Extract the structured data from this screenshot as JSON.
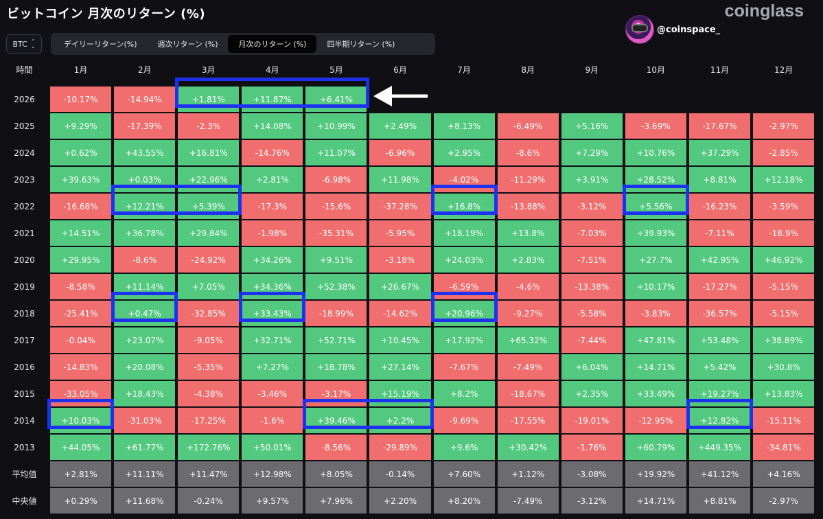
{
  "title": "ビットコイン 月次のリターン (%)",
  "brand": "coinglass",
  "user": {
    "handle": "@coinspace_"
  },
  "coin_select": {
    "value": "BTC"
  },
  "tabs": [
    {
      "label": "デイリーリターン(%)",
      "active": false
    },
    {
      "label": "週次リターン (%)",
      "active": false
    },
    {
      "label": "月次のリターン (%)",
      "active": true
    },
    {
      "label": "四半期リターン (%)",
      "active": false
    }
  ],
  "colors": {
    "positive": "#52c97f",
    "negative": "#f06e6e",
    "stat": "#6b6b70",
    "highlight": "#1f31f0",
    "background": "#101014"
  },
  "chart_data": {
    "type": "heatmap",
    "title": "ビットコイン 月次のリターン (%)",
    "row_header": "時間",
    "columns": [
      "1月",
      "2月",
      "3月",
      "4月",
      "5月",
      "6月",
      "7月",
      "8月",
      "9月",
      "10月",
      "11月",
      "12月"
    ],
    "rows": [
      {
        "label": "2026",
        "values": [
          "-10.17%",
          "-14.94%",
          "+1.81%",
          "+11.87%",
          "+6.41%",
          "",
          "",
          "",
          "",
          "",
          "",
          ""
        ]
      },
      {
        "label": "2025",
        "values": [
          "+9.29%",
          "-17.39%",
          "-2.3%",
          "+14.08%",
          "+10.99%",
          "+2.49%",
          "+8.13%",
          "-6.49%",
          "+5.16%",
          "-3.69%",
          "-17.67%",
          "-2.97%"
        ]
      },
      {
        "label": "2024",
        "values": [
          "+0.62%",
          "+43.55%",
          "+16.81%",
          "-14.76%",
          "+11.07%",
          "-6.96%",
          "+2.95%",
          "-8.6%",
          "+7.29%",
          "+10.76%",
          "+37.29%",
          "-2.85%"
        ]
      },
      {
        "label": "2023",
        "values": [
          "+39.63%",
          "+0.03%",
          "+22.96%",
          "+2.81%",
          "-6.98%",
          "+11.98%",
          "-4.02%",
          "-11.29%",
          "+3.91%",
          "+28.52%",
          "+8.81%",
          "+12.18%"
        ]
      },
      {
        "label": "2022",
        "values": [
          "-16.68%",
          "+12.21%",
          "+5.39%",
          "-17.3%",
          "-15.6%",
          "-37.28%",
          "+16.8%",
          "-13.88%",
          "-3.12%",
          "+5.56%",
          "-16.23%",
          "-3.59%"
        ]
      },
      {
        "label": "2021",
        "values": [
          "+14.51%",
          "+36.78%",
          "+29.84%",
          "-1.98%",
          "-35.31%",
          "-5.95%",
          "+18.19%",
          "+13.8%",
          "-7.03%",
          "+39.93%",
          "-7.11%",
          "-18.9%"
        ]
      },
      {
        "label": "2020",
        "values": [
          "+29.95%",
          "-8.6%",
          "-24.92%",
          "+34.26%",
          "+9.51%",
          "-3.18%",
          "+24.03%",
          "+2.83%",
          "-7.51%",
          "+27.7%",
          "+42.95%",
          "+46.92%"
        ]
      },
      {
        "label": "2019",
        "values": [
          "-8.58%",
          "+11.14%",
          "+7.05%",
          "+34.36%",
          "+52.38%",
          "+26.67%",
          "-6.59%",
          "-4.6%",
          "-13.38%",
          "+10.17%",
          "-17.27%",
          "-5.15%"
        ]
      },
      {
        "label": "2018",
        "values": [
          "-25.41%",
          "+0.47%",
          "-32.85%",
          "+33.43%",
          "-18.99%",
          "-14.62%",
          "+20.96%",
          "-9.27%",
          "-5.58%",
          "-3.83%",
          "-36.57%",
          "-5.15%"
        ]
      },
      {
        "label": "2017",
        "values": [
          "-0.04%",
          "+23.07%",
          "-9.05%",
          "+32.71%",
          "+52.71%",
          "+10.45%",
          "+17.92%",
          "+65.32%",
          "-7.44%",
          "+47.81%",
          "+53.48%",
          "+38.89%"
        ]
      },
      {
        "label": "2016",
        "values": [
          "-14.83%",
          "+20.08%",
          "-5.35%",
          "+7.27%",
          "+18.78%",
          "+27.14%",
          "-7.67%",
          "-7.49%",
          "+6.04%",
          "+14.71%",
          "+5.42%",
          "+30.8%"
        ]
      },
      {
        "label": "2015",
        "values": [
          "-33.05%",
          "+18.43%",
          "-4.38%",
          "-3.46%",
          "-3.17%",
          "+15.19%",
          "+8.2%",
          "-18.67%",
          "+2.35%",
          "+33.49%",
          "+19.27%",
          "+13.83%"
        ]
      },
      {
        "label": "2014",
        "values": [
          "+10.03%",
          "-31.03%",
          "-17.25%",
          "-1.6%",
          "+39.46%",
          "+2.2%",
          "-9.69%",
          "-17.55%",
          "-19.01%",
          "-12.95%",
          "+12.82%",
          "-15.11%"
        ]
      },
      {
        "label": "2013",
        "values": [
          "+44.05%",
          "+61.77%",
          "+172.76%",
          "+50.01%",
          "-8.56%",
          "-29.89%",
          "+9.6%",
          "+30.42%",
          "-1.76%",
          "+60.79%",
          "+449.35%",
          "-34.81%"
        ]
      }
    ],
    "summary_rows": [
      {
        "label": "平均值",
        "values": [
          "+2.81%",
          "+11.11%",
          "+11.47%",
          "+12.98%",
          "+8.05%",
          "-0.14%",
          "+7.60%",
          "+1.12%",
          "-3.08%",
          "+19.92%",
          "+41.12%",
          "+4.16%"
        ]
      },
      {
        "label": "中央値",
        "values": [
          "+0.29%",
          "+11.68%",
          "-0.24%",
          "+9.57%",
          "+7.96%",
          "+2.20%",
          "+8.20%",
          "-7.49%",
          "-3.12%",
          "+14.71%",
          "+8.81%",
          "-2.97%"
        ]
      }
    ],
    "highlights": [
      {
        "row": "2026",
        "from_col": 3,
        "to_col": 5
      },
      {
        "row": "2022",
        "from_col": 2,
        "to_col": 3
      },
      {
        "row": "2022",
        "from_col": 7,
        "to_col": 7
      },
      {
        "row": "2022",
        "from_col": 10,
        "to_col": 10
      },
      {
        "row": "2018",
        "from_col": 2,
        "to_col": 2
      },
      {
        "row": "2018",
        "from_col": 4,
        "to_col": 4
      },
      {
        "row": "2018",
        "from_col": 7,
        "to_col": 7
      },
      {
        "row": "2014",
        "from_col": 1,
        "to_col": 1
      },
      {
        "row": "2014",
        "from_col": 5,
        "to_col": 6
      },
      {
        "row": "2014",
        "from_col": 11,
        "to_col": 11
      }
    ],
    "annotations": [
      {
        "type": "arrow",
        "direction": "left",
        "row": "2026",
        "color": "#ffffff"
      }
    ]
  }
}
